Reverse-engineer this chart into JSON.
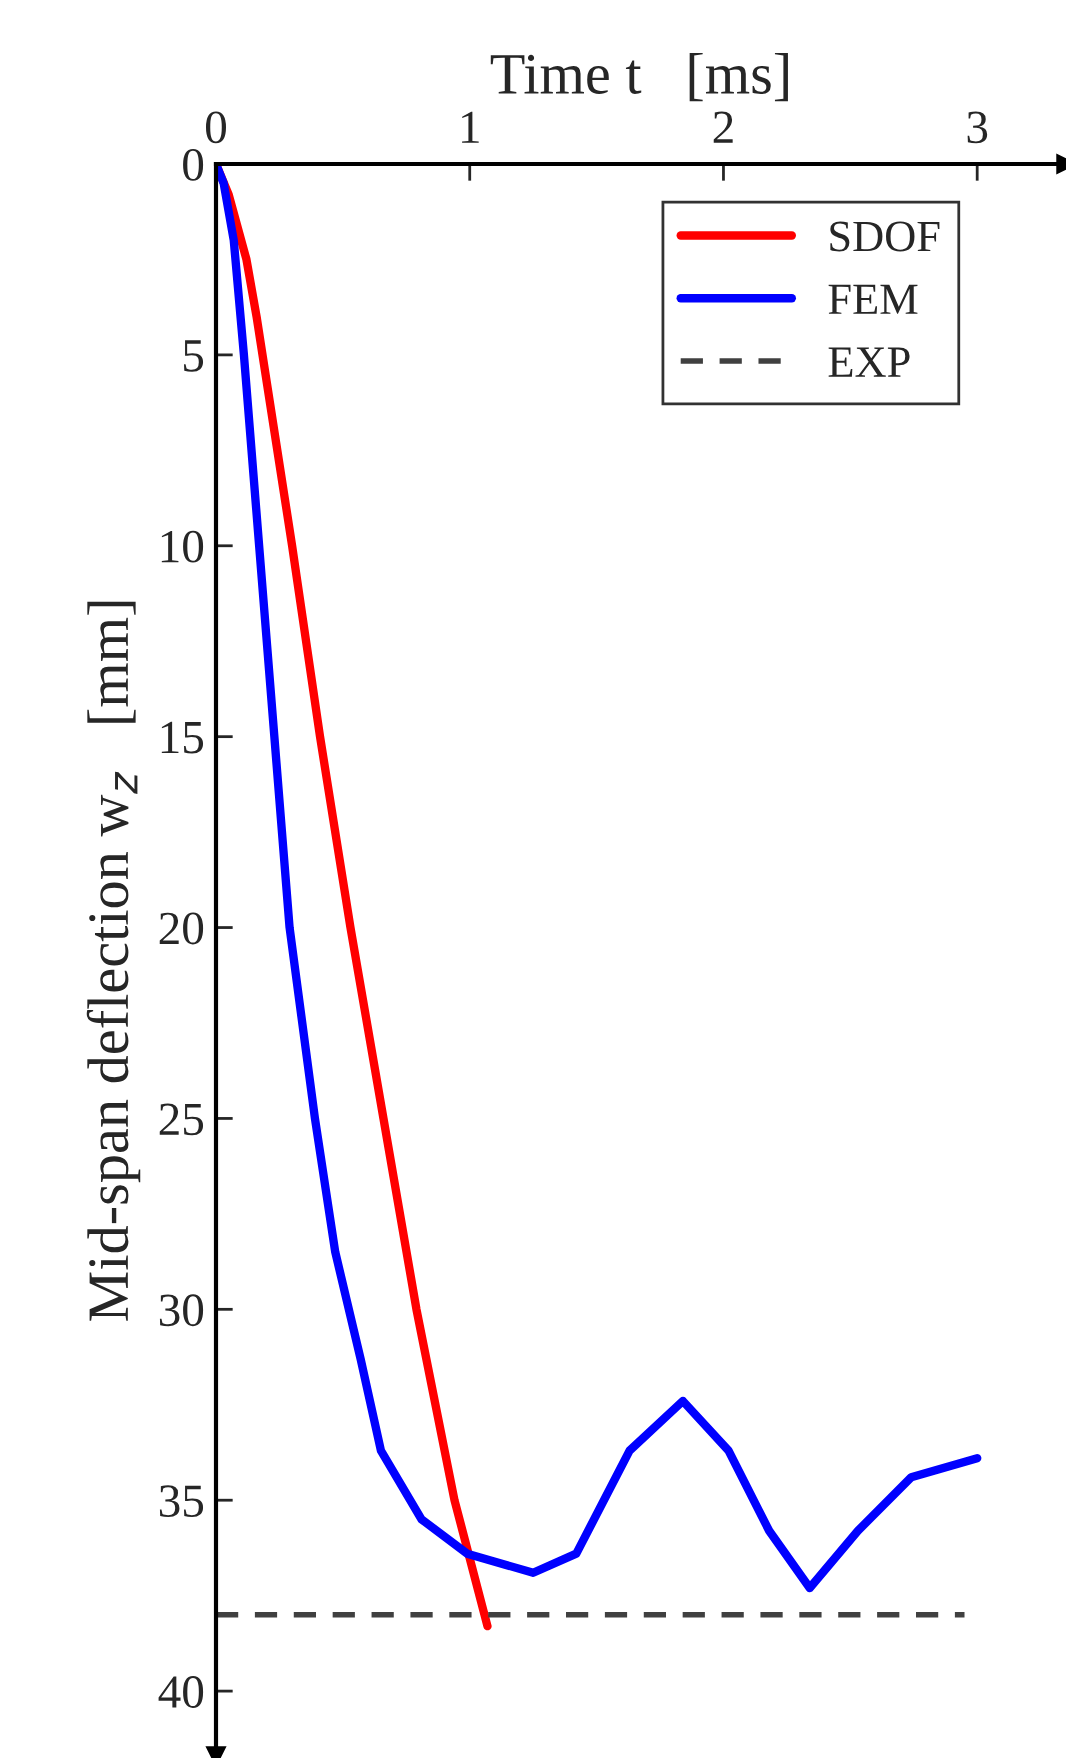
{
  "chart_data": {
    "type": "line",
    "xlabel": "Time t   [ms]",
    "ylabel": "Mid-span deflection w$_{z}$   [mm]",
    "xlim": [
      0,
      3.35
    ],
    "ylim": [
      41.7,
      0
    ],
    "xticks": [
      0,
      1,
      2,
      3
    ],
    "yticks": [
      0,
      5,
      10,
      15,
      20,
      25,
      30,
      35,
      40
    ],
    "grid": false,
    "legend": "top right",
    "marker": "none",
    "series": [
      {
        "name": "SDOF",
        "color": "#ff0000",
        "line_style": "solid",
        "x": [
          0,
          0.05,
          0.12,
          0.16,
          0.3,
          0.41,
          0.53,
          0.66,
          0.79,
          0.94,
          1.07
        ],
        "values": [
          0,
          0.8,
          2.5,
          4,
          10,
          15,
          20,
          25,
          30,
          35,
          38.3
        ]
      },
      {
        "name": "FEM",
        "color": "#0000ff",
        "line_style": "solid",
        "x": [
          0,
          0.03,
          0.07,
          0.11,
          0.17,
          0.23,
          0.29,
          0.39,
          0.47,
          0.57,
          0.65,
          0.81,
          0.99,
          1.25,
          1.42,
          1.63,
          1.84,
          2.02,
          2.18,
          2.34,
          2.53,
          2.74,
          3.0
        ],
        "values": [
          0,
          0.5,
          2,
          5,
          10,
          15,
          20,
          25,
          28.5,
          31.3,
          33.7,
          35.5,
          36.4,
          36.9,
          36.4,
          33.7,
          32.4,
          33.7,
          35.8,
          37.3,
          35.8,
          34.4,
          33.9
        ]
      },
      {
        "name": "EXP",
        "color": "#404040",
        "line_style": "dashed",
        "x": [
          0,
          2.95
        ],
        "values": [
          38,
          38
        ]
      }
    ]
  }
}
